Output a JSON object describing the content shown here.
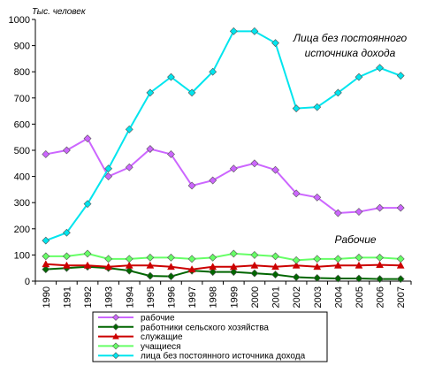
{
  "chart_data": {
    "type": "line",
    "unit_label": "Тыс. человек",
    "x": [
      "1990",
      "1991",
      "1992",
      "1993",
      "1994",
      "1995",
      "1996",
      "1997",
      "1998",
      "1999",
      "2000",
      "2001",
      "2002",
      "2003",
      "2004",
      "2005",
      "2006",
      "2007"
    ],
    "ylim": [
      0,
      1000
    ],
    "yticks": [
      0,
      100,
      200,
      300,
      400,
      500,
      600,
      700,
      800,
      900,
      1000
    ],
    "grid": false,
    "legend_position": "bottom",
    "annotations": [
      {
        "lines": [
          "Лица без постоянного",
          "источника дохода"
        ],
        "series_index": 4
      },
      {
        "lines": [
          "Рабочие"
        ],
        "series_index": 0
      }
    ],
    "series": [
      {
        "name": "рабочие",
        "color": "#cc66ff",
        "marker": "diamond",
        "values": [
          485,
          500,
          545,
          400,
          435,
          505,
          485,
          365,
          385,
          430,
          450,
          425,
          335,
          320,
          260,
          265,
          280,
          280
        ]
      },
      {
        "name": "работники сельского хозяйства",
        "color": "#006600",
        "marker": "diamond",
        "values": [
          45,
          50,
          55,
          50,
          40,
          20,
          18,
          40,
          35,
          35,
          30,
          25,
          15,
          12,
          10,
          10,
          8,
          8
        ]
      },
      {
        "name": "служащие",
        "color": "#cc0000",
        "marker": "triangle",
        "values": [
          65,
          60,
          60,
          55,
          60,
          60,
          55,
          45,
          55,
          55,
          60,
          55,
          60,
          55,
          60,
          60,
          62,
          60
        ]
      },
      {
        "name": "учащиеся",
        "color": "#66ff66",
        "marker": "diamond",
        "values": [
          95,
          95,
          105,
          85,
          85,
          90,
          90,
          85,
          90,
          105,
          100,
          95,
          80,
          85,
          85,
          90,
          90,
          85
        ]
      },
      {
        "name": "лица без постоянного источника дохода",
        "color": "#00e5ee",
        "marker": "diamond",
        "values": [
          155,
          185,
          295,
          430,
          580,
          720,
          780,
          720,
          800,
          955,
          955,
          910,
          660,
          665,
          720,
          780,
          815,
          785
        ]
      }
    ]
  }
}
